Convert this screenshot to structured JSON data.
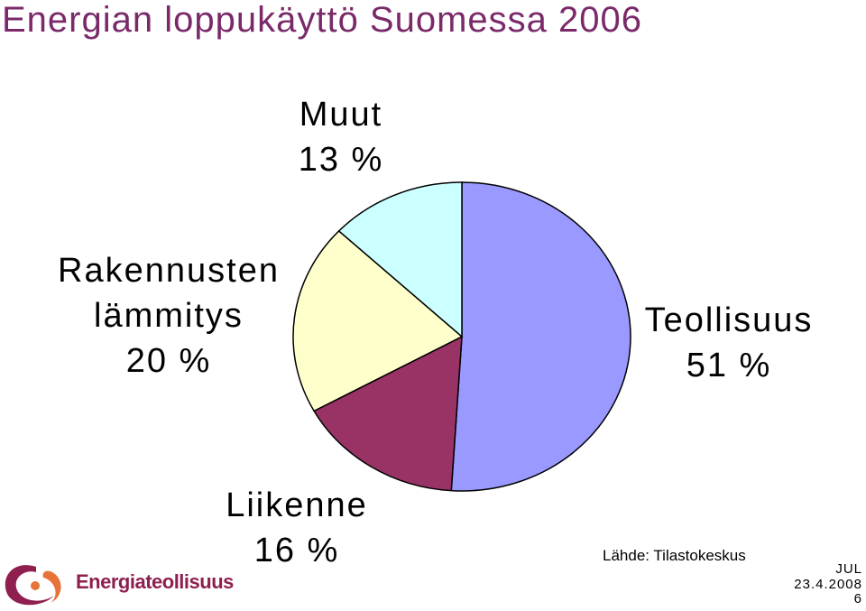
{
  "chart_data": {
    "type": "pie",
    "title": "Energian loppukäyttö Suomessa 2006",
    "categories": [
      "Teollisuus",
      "Liikenne",
      "Rakennusten lämmitys",
      "Muut"
    ],
    "values": [
      51,
      16,
      20,
      13
    ],
    "value_labels": [
      "51 %",
      "16 %",
      "20 %",
      "13 %"
    ],
    "colors": [
      "#9999ff",
      "#993366",
      "#ffffcc",
      "#ccffff"
    ],
    "source": "Lähde: Tilastokeskus"
  },
  "footer": {
    "logo": "Energiateollisuus",
    "author": "JUL",
    "date": "23.4.2008",
    "page": "6"
  }
}
